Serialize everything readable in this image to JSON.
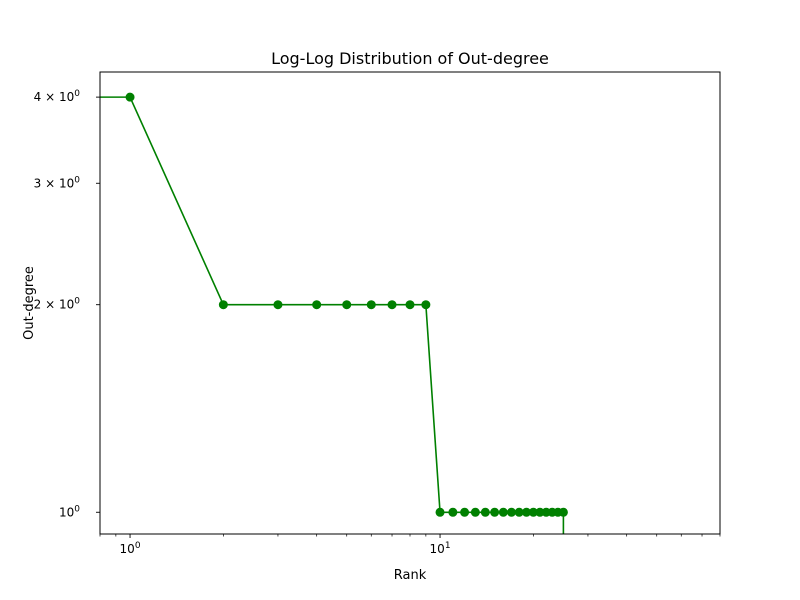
{
  "chart_data": {
    "type": "line",
    "title": "Log-Log Distribution of Out-degree",
    "xlabel": "Rank",
    "ylabel": "Out-degree",
    "xscale": "log",
    "yscale": "log",
    "xlim": [
      0.8,
      80
    ],
    "ylim": [
      0.93,
      4.35
    ],
    "grid": false,
    "color": "#008000",
    "marker": "circle",
    "x_ticks": [
      {
        "value": 1,
        "label": "10",
        "exp": "0"
      },
      {
        "value": 10,
        "label": "10",
        "exp": "1"
      }
    ],
    "y_ticks": [
      {
        "value": 1,
        "label": "10",
        "exp": "0"
      },
      {
        "value": 2,
        "label": "2 × 10",
        "exp": "0"
      },
      {
        "value": 3,
        "label": "3 × 10",
        "exp": "0"
      },
      {
        "value": 4,
        "label": "4 × 10",
        "exp": "0"
      }
    ],
    "series": [
      {
        "x": [
          1,
          2,
          3,
          4,
          5,
          6,
          7,
          8,
          9,
          10,
          11,
          12,
          13,
          14,
          15,
          16,
          17,
          18,
          19,
          20,
          21,
          22,
          23,
          24,
          25
        ],
        "values": [
          4,
          2,
          2,
          2,
          2,
          2,
          2,
          2,
          2,
          1,
          1,
          1,
          1,
          1,
          1,
          1,
          1,
          1,
          1,
          1,
          1,
          1,
          1,
          1,
          1
        ]
      }
    ]
  }
}
